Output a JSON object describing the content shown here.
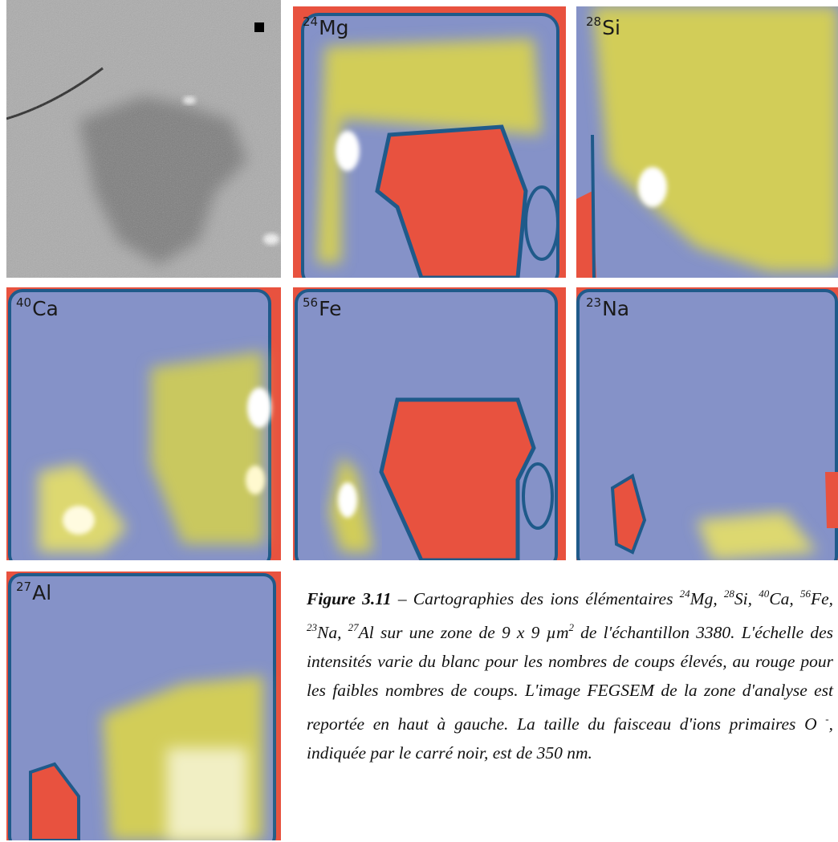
{
  "panels": [
    {
      "mass": null,
      "element": null
    },
    {
      "mass": "24",
      "element": "Mg"
    },
    {
      "mass": "28",
      "element": "Si"
    },
    {
      "mass": "40",
      "element": "Ca"
    },
    {
      "mass": "56",
      "element": "Fe"
    },
    {
      "mass": "23",
      "element": "Na"
    },
    {
      "mass": "27",
      "element": "Al"
    }
  ],
  "caption": {
    "label": "Figure 3.11",
    "segments": [
      {
        "text": " – Cartographies des ions élémentaires ",
        "sup": false
      },
      {
        "text": "24",
        "sup": true
      },
      {
        "text": "Mg, ",
        "sup": false
      },
      {
        "text": "28",
        "sup": true
      },
      {
        "text": "Si, ",
        "sup": false
      },
      {
        "text": "40",
        "sup": true
      },
      {
        "text": "Ca, ",
        "sup": false
      },
      {
        "text": "56",
        "sup": true
      },
      {
        "text": "Fe, ",
        "sup": false
      },
      {
        "text": "23",
        "sup": true
      },
      {
        "text": "Na, ",
        "sup": false
      },
      {
        "text": "27",
        "sup": true
      },
      {
        "text": "Al sur une zone de 9 x 9 µm",
        "sup": false
      },
      {
        "text": "2",
        "sup": true
      },
      {
        "text": " de l'échantillon 3380. L'échelle des intensités varie du blanc pour les nombres de coups élevés, au rouge pour les faibles nombres de coups. L'image FEGSEM de la zone d'analyse est reportée en haut à gauche. La taille du faisceau d'ions primaires O ",
        "sup": false
      },
      {
        "text": "-",
        "sup": true
      },
      {
        "text": ", indiquée par le carré noir, est de 350 nm.",
        "sup": false
      }
    ]
  }
}
